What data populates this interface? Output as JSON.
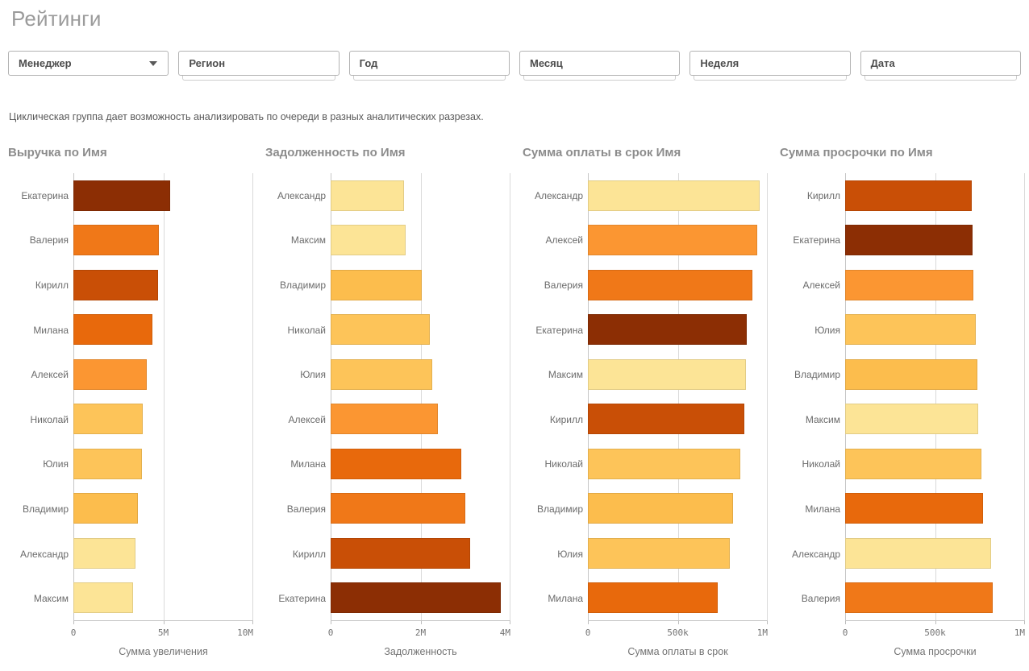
{
  "page": {
    "title": "Рейтинги",
    "description": "Циклическая группа дает возможность анализировать по очереди в разных аналитических разрезах."
  },
  "filters": [
    {
      "label": "Менеджер",
      "type": "cyclic-dropdown"
    },
    {
      "label": "Регион",
      "type": "filter-pane"
    },
    {
      "label": "Год",
      "type": "filter-pane"
    },
    {
      "label": "Месяц",
      "type": "filter-pane"
    },
    {
      "label": "Неделя",
      "type": "filter-pane"
    },
    {
      "label": "Дата",
      "type": "filter-pane"
    }
  ],
  "person_colors": {
    "Екатерина": "#8C2E04",
    "Кирилл": "#C94F06",
    "Валерия": "#F07818",
    "Милана": "#E8690C",
    "Алексей": "#FB9632",
    "Николай": "#FDC459",
    "Юлия": "#FDC459",
    "Владимир": "#FCBD4D",
    "Александр": "#FCE496",
    "Максим": "#FCE496"
  },
  "chart_data": [
    {
      "type": "bar",
      "orientation": "horizontal",
      "title": "Выручка по Имя",
      "xlabel": "Сумма увеличения",
      "xticks": [
        "0",
        "5M",
        "10M"
      ],
      "xmax": 10000000,
      "grid": true,
      "categories": [
        "Екатерина",
        "Валерия",
        "Кирилл",
        "Милана",
        "Алексей",
        "Николай",
        "Юлия",
        "Владимир",
        "Александр",
        "Максим"
      ],
      "values": [
        5400000,
        4750000,
        4700000,
        4400000,
        4100000,
        3850000,
        3800000,
        3600000,
        3450000,
        3300000
      ],
      "colors": [
        "#8C2E04",
        "#F07818",
        "#C94F06",
        "#E8690C",
        "#FB9632",
        "#FDC459",
        "#FDC459",
        "#FCBD4D",
        "#FCE496",
        "#FCE496"
      ]
    },
    {
      "type": "bar",
      "orientation": "horizontal",
      "title": "Задолженность по Имя",
      "xlabel": "Задолженность",
      "xticks": [
        "0",
        "2M",
        "4M"
      ],
      "xmax": 4000000,
      "grid": true,
      "categories": [
        "Александр",
        "Максим",
        "Владимир",
        "Николай",
        "Юлия",
        "Алексей",
        "Милана",
        "Валерия",
        "Кирилл",
        "Екатерина"
      ],
      "values": [
        1630000,
        1670000,
        2030000,
        2210000,
        2260000,
        2380000,
        2900000,
        3000000,
        3100000,
        3780000
      ],
      "colors": [
        "#FCE496",
        "#FCE496",
        "#FCBD4D",
        "#FDC459",
        "#FDC459",
        "#FB9632",
        "#E8690C",
        "#F07818",
        "#C94F06",
        "#8C2E04"
      ]
    },
    {
      "type": "bar",
      "orientation": "horizontal",
      "title": "Сумма оплаты в срок Имя",
      "xlabel": "Сумма оплаты в срок",
      "xticks": [
        "0",
        "500k",
        "1M"
      ],
      "xmax": 1000000,
      "grid": true,
      "categories": [
        "Александр",
        "Алексей",
        "Валерия",
        "Екатерина",
        "Максим",
        "Кирилл",
        "Николай",
        "Владимир",
        "Юлия",
        "Милана"
      ],
      "values": [
        955000,
        940000,
        915000,
        885000,
        880000,
        868000,
        848000,
        805000,
        790000,
        723000
      ],
      "colors": [
        "#FCE496",
        "#FB9632",
        "#F07818",
        "#8C2E04",
        "#FCE496",
        "#C94F06",
        "#FDC459",
        "#FCBD4D",
        "#FDC459",
        "#E8690C"
      ]
    },
    {
      "type": "bar",
      "orientation": "horizontal",
      "title": "Сумма просрочки по Имя",
      "xlabel": "Сумма просрочки",
      "xticks": [
        "0",
        "500k",
        "1M"
      ],
      "xmax": 1000000,
      "grid": true,
      "categories": [
        "Кирилл",
        "Екатерина",
        "Алексей",
        "Юлия",
        "Владимир",
        "Максим",
        "Николай",
        "Милана",
        "Александр",
        "Валерия"
      ],
      "values": [
        705000,
        710000,
        712000,
        728000,
        737000,
        740000,
        758000,
        768000,
        813000,
        820000
      ],
      "colors": [
        "#C94F06",
        "#8C2E04",
        "#FB9632",
        "#FDC459",
        "#FCBD4D",
        "#FCE496",
        "#FDC459",
        "#E8690C",
        "#FCE496",
        "#F07818"
      ]
    }
  ]
}
